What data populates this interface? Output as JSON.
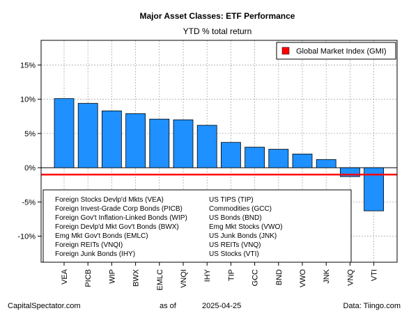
{
  "chart_data": {
    "type": "bar",
    "title": "Major Asset Classes: ETF Performance",
    "subtitle": "YTD % total return",
    "categories": [
      "VEA",
      "PICB",
      "WIP",
      "BWX",
      "EMLC",
      "VNQI",
      "IHY",
      "TIP",
      "GCC",
      "BND",
      "VWO",
      "JNK",
      "VNQ",
      "VTI"
    ],
    "values": [
      10.1,
      9.4,
      8.3,
      7.9,
      7.1,
      7.0,
      6.2,
      3.7,
      3.0,
      2.7,
      2.0,
      1.2,
      -1.3,
      -6.3
    ],
    "y_ticks": [
      -10,
      -5,
      0,
      5,
      10,
      15
    ],
    "y_tick_suffix": "%",
    "ylim": [
      -13.8,
      18.6
    ],
    "reference_line": {
      "label": "Global Market Index (GMI)",
      "value": -1.0,
      "color": "#ff0000"
    },
    "bar_color": "#1e90ff",
    "grid": true,
    "legend_position": "top-right"
  },
  "key_table": {
    "left": [
      "Foreign Stocks Devlp'd Mkts (VEA)",
      "Foreign Invest-Grade Corp Bonds (PICB)",
      "Foreign Gov't Inflation-Linked Bonds (WIP)",
      "Foreign Devlp'd Mkt Gov't Bonds (BWX)",
      "Emg Mkt Gov't Bonds (EMLC)",
      "Foreign REITs (VNQI)",
      "Foreign Junk Bonds (IHY)"
    ],
    "right": [
      "US TIPS (TIP)",
      "Commodities (GCC)",
      "US Bonds (BND)",
      "Emg Mkt Stocks (VWO)",
      "US Junk Bonds (JNK)",
      "US REITs (VNQ)",
      "US Stocks (VTI)"
    ]
  },
  "footer": {
    "source_left": "CapitalSpectator.com",
    "as_of_label": "as of",
    "date": "2025-04-25",
    "source_right": "Data: Tiingo.com"
  }
}
